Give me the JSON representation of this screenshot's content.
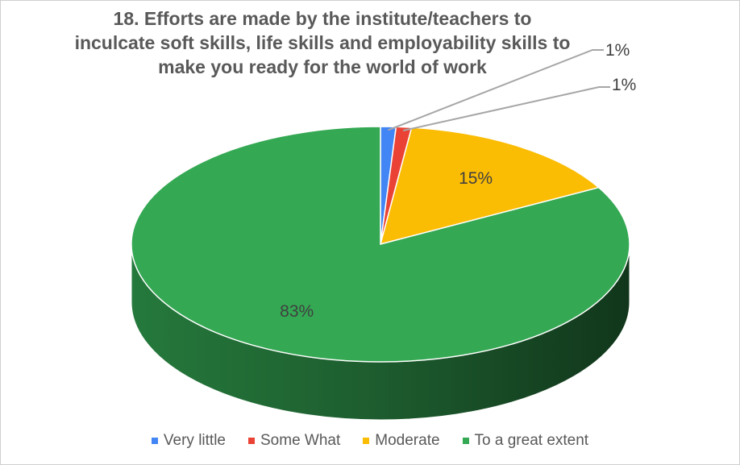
{
  "chart_data": {
    "type": "pie",
    "style": "3d",
    "title_lines": [
      "18. Efforts are made by the institute/teachers to",
      "inculcate soft skills, life skills and employability skills to",
      "make you ready for the world of work"
    ],
    "categories": [
      "Very little",
      "Some What",
      "Moderate",
      "To a great extent"
    ],
    "values": [
      1,
      1,
      15,
      83
    ],
    "data_labels": [
      "1%",
      "1%",
      "15%",
      "83%"
    ],
    "colors": [
      "#4285f4",
      "#ea4335",
      "#fbbc04",
      "#34a853"
    ],
    "legend_position": "bottom"
  }
}
